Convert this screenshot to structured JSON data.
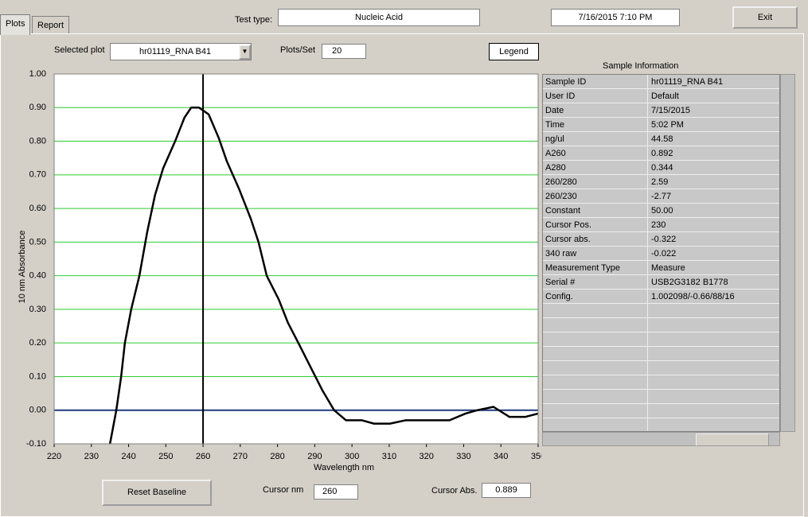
{
  "tabs": [
    "Plots",
    "Report"
  ],
  "header": {
    "test_type_label": "Test type:",
    "test_type": "Nucleic Acid",
    "datetime": "7/16/2015 7:10 PM",
    "exit": "Exit"
  },
  "controls": {
    "selected_plot_label": "Selected plot",
    "selected_plot": "hr01119_RNA B41",
    "plots_per_set_label": "Plots/Set",
    "plots_per_set": "20",
    "legend": "Legend",
    "reset_baseline": "Reset Baseline",
    "cursor_nm_label": "Cursor nm",
    "cursor_nm": 260,
    "cursor_abs_label": "Cursor Abs.",
    "cursor_abs": "0.889"
  },
  "sample_info": {
    "title": "Sample Information",
    "rows": [
      [
        "Sample ID",
        "hr01119_RNA B41"
      ],
      [
        "User ID",
        "Default"
      ],
      [
        "Date",
        "7/15/2015"
      ],
      [
        "Time",
        "5:02 PM"
      ],
      [
        "ng/ul",
        "44.58"
      ],
      [
        "A260",
        "0.892"
      ],
      [
        "A280",
        "0.344"
      ],
      [
        "260/280",
        "2.59"
      ],
      [
        "260/230",
        "-2.77"
      ],
      [
        "Constant",
        "50.00"
      ],
      [
        "Cursor Pos.",
        "230"
      ],
      [
        "Cursor abs.",
        "-0.322"
      ],
      [
        "340 raw",
        "-0.022"
      ],
      [
        "Measurement Type",
        "Measure"
      ],
      [
        "Serial #",
        "USB2G3182 B1778"
      ],
      [
        "Config.",
        "1.002098/-0.66/88/16"
      ]
    ]
  },
  "plot": {
    "type": "line",
    "x_label": "Wavelength nm",
    "y_label": "10 nm Absorbance",
    "x": [
      235,
      236.7,
      238,
      239,
      240.7,
      242.9,
      245,
      247.1,
      249.3,
      252.5,
      255,
      256.8,
      258.9,
      261.5,
      264.2,
      266.4,
      269.6,
      272.8,
      274.9,
      277.1,
      280.3,
      282.8,
      285.6,
      288.8,
      292,
      295.2,
      298.4,
      302.7,
      305.9,
      310.2,
      314.4,
      320.9,
      326.2,
      330.5,
      333.7,
      338,
      342.3,
      346.5,
      350
    ],
    "values": [
      -0.1,
      0.0,
      0.1,
      0.2,
      0.3,
      0.4,
      0.53,
      0.64,
      0.72,
      0.8,
      0.87,
      0.9,
      0.9,
      0.88,
      0.81,
      0.74,
      0.66,
      0.57,
      0.5,
      0.4,
      0.33,
      0.26,
      0.2,
      0.13,
      0.06,
      0.0,
      -0.03,
      -0.03,
      -0.04,
      -0.04,
      -0.03,
      -0.03,
      -0.03,
      -0.01,
      0.0,
      0.01,
      -0.02,
      -0.02,
      -0.01
    ],
    "color": "#000000",
    "grid_color": "#2ecc2e",
    "baseline_color": "#1f3a7a",
    "cursor_color": "#000000",
    "xlim": [
      220,
      350
    ],
    "xticks": [
      220,
      230,
      240,
      250,
      260,
      270,
      280,
      290,
      300,
      310,
      320,
      330,
      340,
      350
    ],
    "ylim": [
      -0.1,
      1.0
    ],
    "yticks": [
      {
        "value": -0.1,
        "label": "-0.10"
      },
      {
        "value": 0,
        "label": "0.00"
      },
      {
        "value": 0.1,
        "label": "0.10"
      },
      {
        "value": 0.2,
        "label": "0.20"
      },
      {
        "value": 0.3,
        "label": "0.30"
      },
      {
        "value": 0.4,
        "label": "0.40"
      },
      {
        "value": 0.5,
        "label": "0.50"
      },
      {
        "value": 0.6,
        "label": "0.60"
      },
      {
        "value": 0.7,
        "label": "0.70"
      },
      {
        "value": 0.8,
        "label": "0.80"
      },
      {
        "value": 0.9,
        "label": "0.90"
      },
      {
        "value": 1.0,
        "label": "1.00"
      }
    ],
    "grid": true
  }
}
